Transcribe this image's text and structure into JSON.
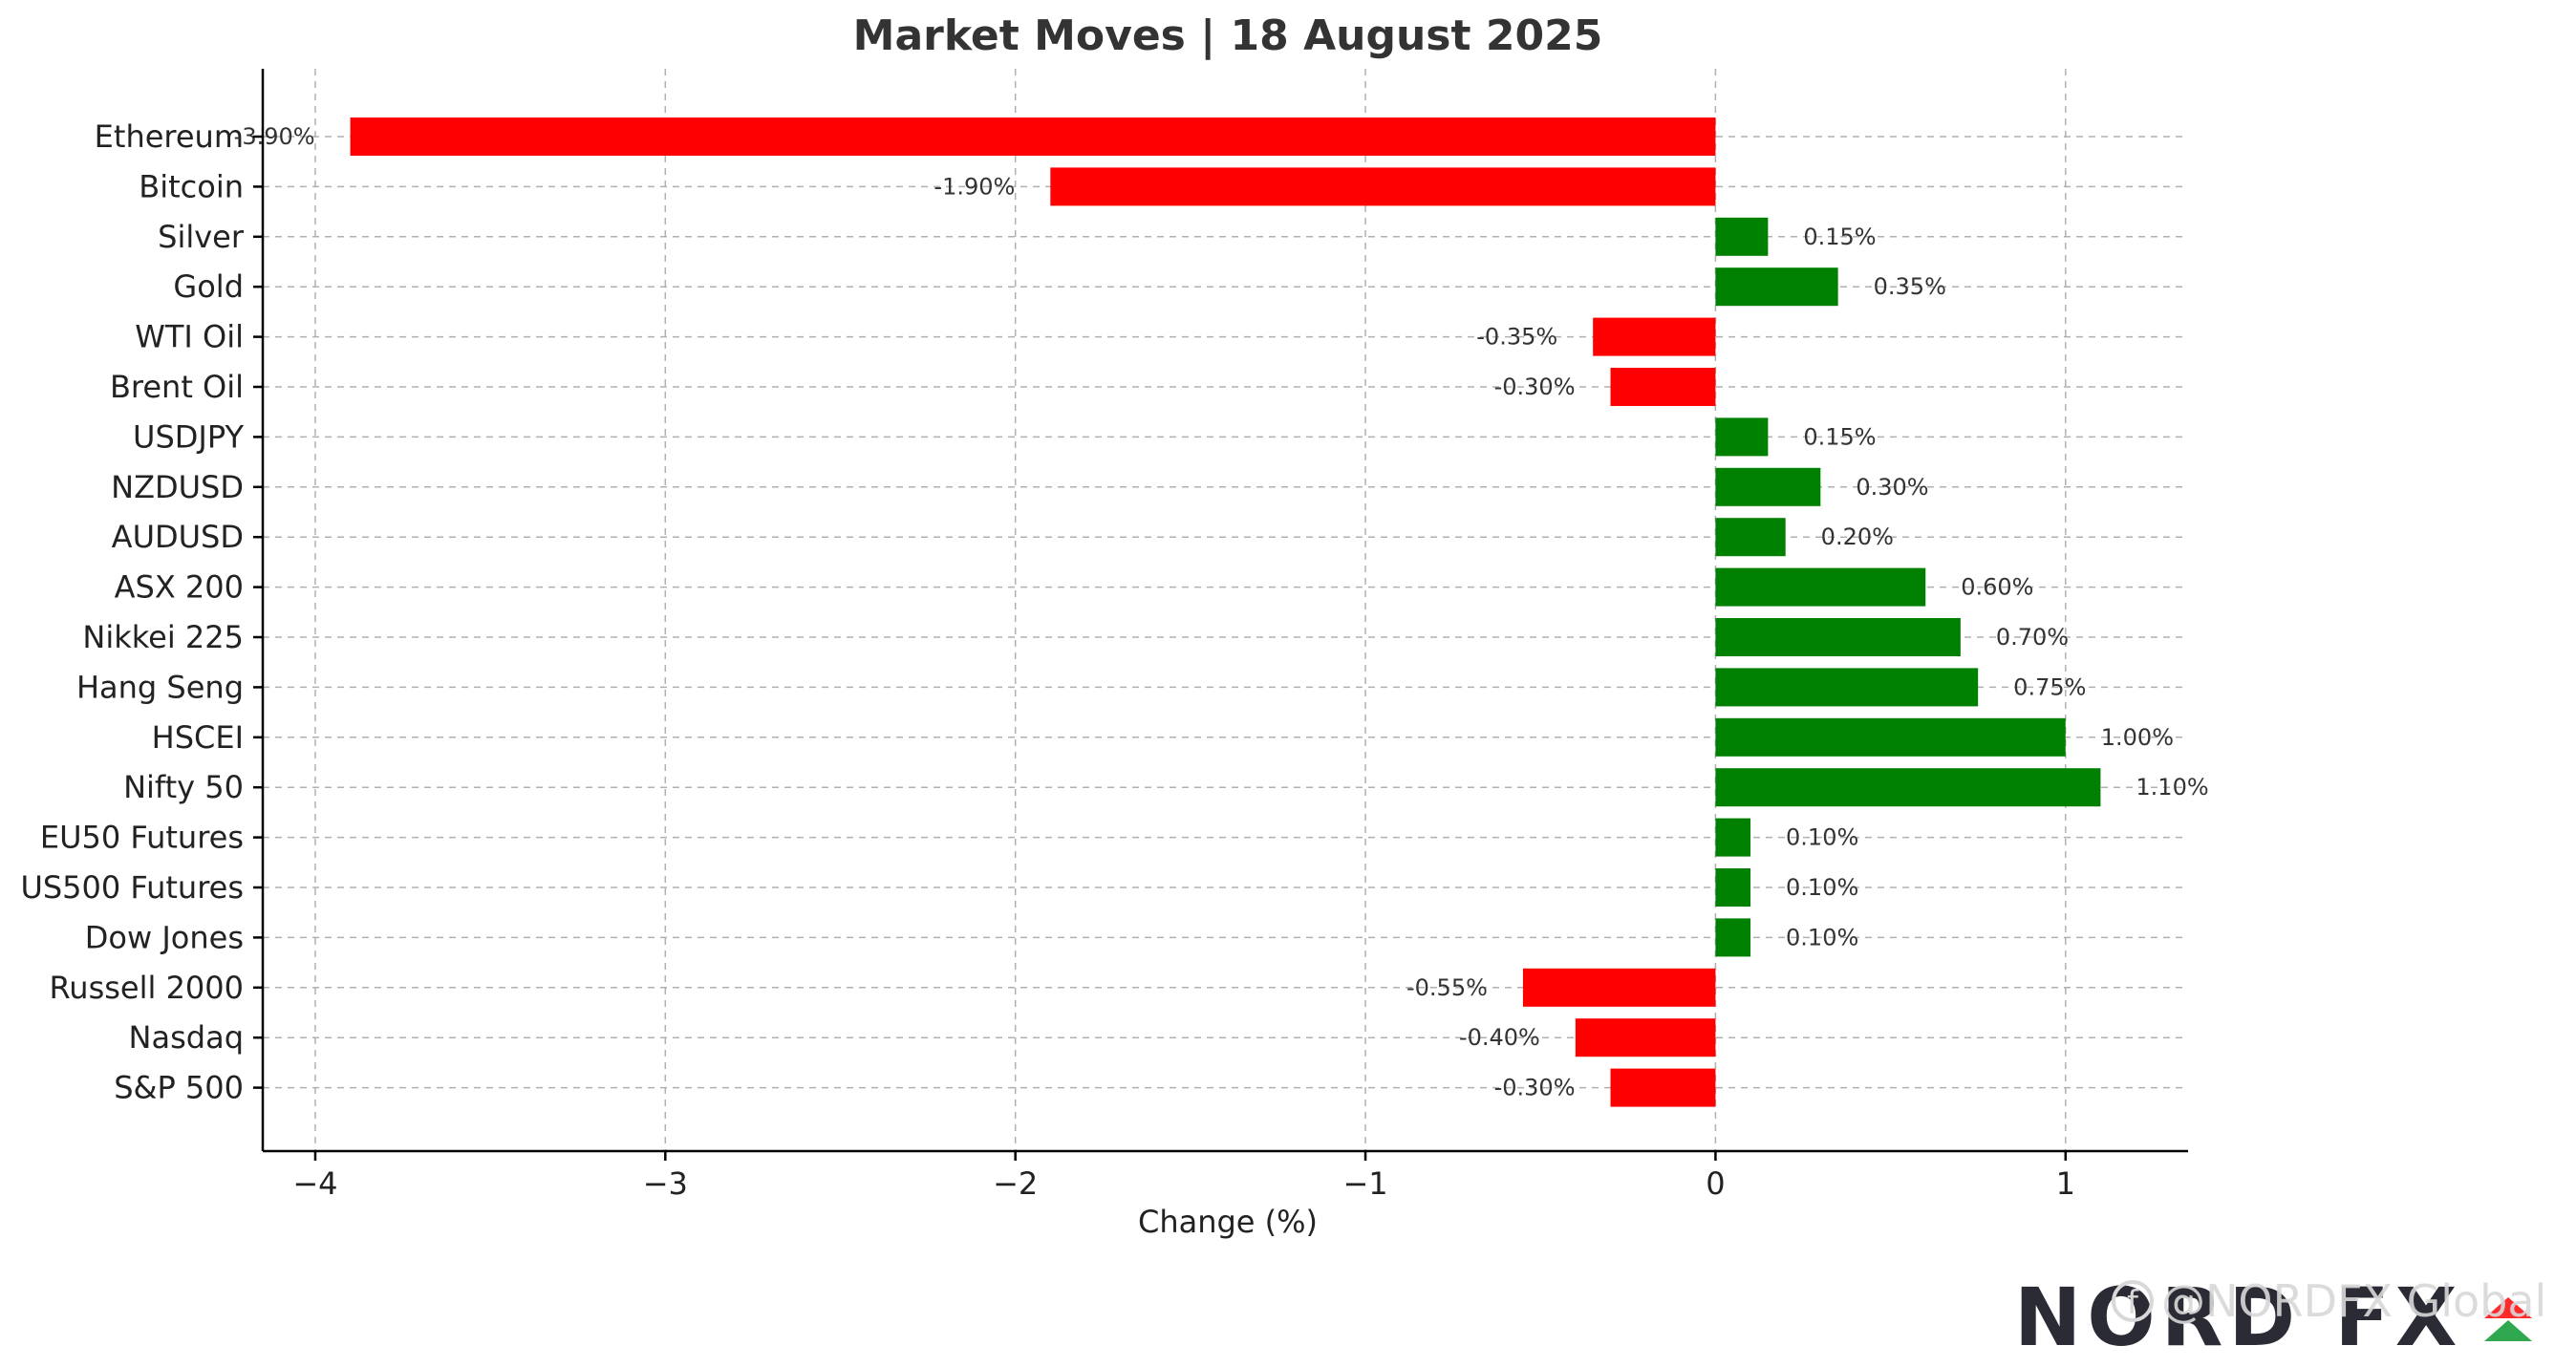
{
  "chart_data": {
    "type": "bar",
    "orientation": "horizontal",
    "title": "Market Moves | 18 August 2025",
    "xlabel": "Change (%)",
    "ylabel": "",
    "xlim": [
      -4.15,
      1.35
    ],
    "xticks": [
      -4,
      -3,
      -2,
      -1,
      0,
      1
    ],
    "xtick_labels": [
      "−4",
      "−3",
      "−2",
      "−1",
      "0",
      "1"
    ],
    "grid": true,
    "categories": [
      "Ethereum",
      "Bitcoin",
      "Silver",
      "Gold",
      "WTI Oil",
      "Brent Oil",
      "USDJPY",
      "NZDUSD",
      "AUDUSD",
      "ASX 200",
      "Nikkei 225",
      "Hang Seng",
      "HSCEI",
      "Nifty 50",
      "EU50 Futures",
      "US500 Futures",
      "Dow Jones",
      "Russell 2000",
      "Nasdaq",
      "S&P 500"
    ],
    "values": [
      -3.9,
      -1.9,
      0.15,
      0.35,
      -0.35,
      -0.3,
      0.15,
      0.3,
      0.2,
      0.6,
      0.7,
      0.75,
      1.0,
      1.1,
      0.1,
      0.1,
      0.1,
      -0.55,
      -0.4,
      -0.3
    ],
    "value_labels": [
      "-3.90%",
      "-1.90%",
      "0.15%",
      "0.35%",
      "-0.35%",
      "-0.30%",
      "0.15%",
      "0.30%",
      "0.20%",
      "0.60%",
      "0.70%",
      "0.75%",
      "1.00%",
      "1.10%",
      "0.10%",
      "0.10%",
      "0.10%",
      "-0.55%",
      "-0.40%",
      "-0.30%"
    ],
    "colors": {
      "positive": "#008000",
      "negative": "#ff0000"
    }
  },
  "watermark": {
    "brand_logo": "NORD FX",
    "handle_text": "@NORDFX Global",
    "icon": "social-icon",
    "colors": {
      "dark": "#2b2b36",
      "accent": "#ff2b2b",
      "green": "#2fa84f"
    }
  }
}
